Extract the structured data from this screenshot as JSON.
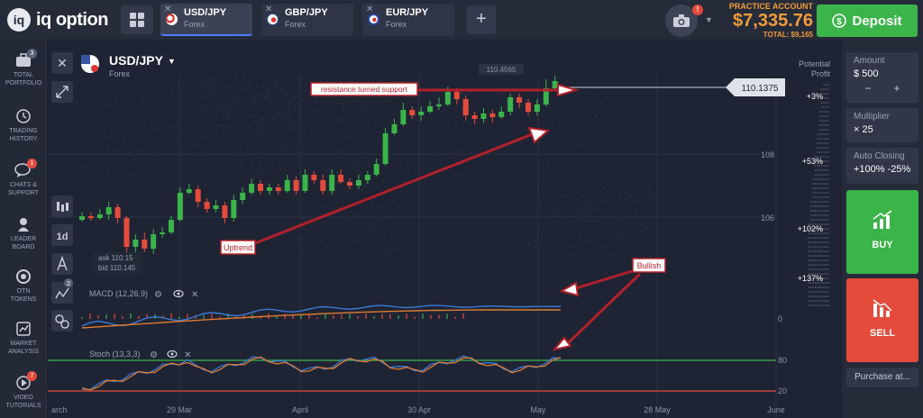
{
  "brand": {
    "logo_mark": "iq",
    "name": "iq option"
  },
  "tabs": [
    {
      "pair": "USD/JPY",
      "type": "Forex",
      "active": true
    },
    {
      "pair": "GBP/JPY",
      "type": "Forex",
      "active": false
    },
    {
      "pair": "EUR/JPY",
      "type": "Forex",
      "active": false
    }
  ],
  "header": {
    "add_tab": "+",
    "notification_count": "!",
    "account_label": "PRACTICE ACCOUNT",
    "balance": "$7,335.76",
    "total": "TOTAL: $9,165",
    "deposit_label": "Deposit"
  },
  "sidebar": {
    "items": [
      {
        "label1": "TOTAL",
        "label2": "PORTFOLIO",
        "badge": "3",
        "badge_color": "#5a6175"
      },
      {
        "label1": "TRADING",
        "label2": "HISTORY",
        "badge": "",
        "badge_color": ""
      },
      {
        "label1": "CHATS &",
        "label2": "SUPPORT",
        "badge": "1",
        "badge_color": "#e54b3b"
      },
      {
        "label1": "LEADER",
        "label2": "BOARD",
        "badge": "",
        "badge_color": ""
      },
      {
        "label1": "OTN",
        "label2": "TOKENS",
        "badge": "",
        "badge_color": ""
      },
      {
        "label1": "MARKET",
        "label2": "ANALYSIS",
        "badge": "",
        "badge_color": ""
      },
      {
        "label1": "VIDEO",
        "label2": "TUTORIALS",
        "badge": "7",
        "badge_color": "#e54b3b"
      }
    ]
  },
  "chart": {
    "asset": "USD/JPY",
    "asset_type": "Forex",
    "potential_profit_label1": "Potential",
    "potential_profit_label2": "Profit",
    "current_price": "110.1375",
    "high_tag": "110.4565",
    "ask": "ask 110.15",
    "bid": "bid 110.145",
    "timeframe": "1d",
    "price_ticks": [
      "108",
      "106"
    ],
    "profit_levels": [
      "+3%",
      "+53%",
      "+102%",
      "+137%"
    ],
    "x_labels": [
      "arch",
      "29 Mar",
      "April",
      "30 Apr",
      "May",
      "28 May",
      "June"
    ],
    "macd_label": "MACD (12,26,9)",
    "macd_zero": "0",
    "stoch_label": "Stoch (13,3,3)",
    "stoch_levels": [
      "80",
      "20"
    ],
    "indicator_badge": "2",
    "annotations": {
      "resistance": "resistance turned support",
      "uptrend": "Uptrend",
      "bullish": "Bullish"
    }
  },
  "trade_panel": {
    "amount_label": "Amount",
    "amount_value": "$  500",
    "minus": "−",
    "plus": "+",
    "multiplier_label": "Multiplier",
    "multiplier_value": "× 25",
    "auto_closing_label": "Auto Closing",
    "auto_closing_value": "+100% -25%",
    "buy_label": "BUY",
    "sell_label": "SELL",
    "purchase_label": "Purchase at..."
  },
  "colors": {
    "up": "#3bb44a",
    "down": "#e54b3b",
    "accent": "#f29c38",
    "macd": "#3a7bd5",
    "signal": "#e07b2e"
  }
}
